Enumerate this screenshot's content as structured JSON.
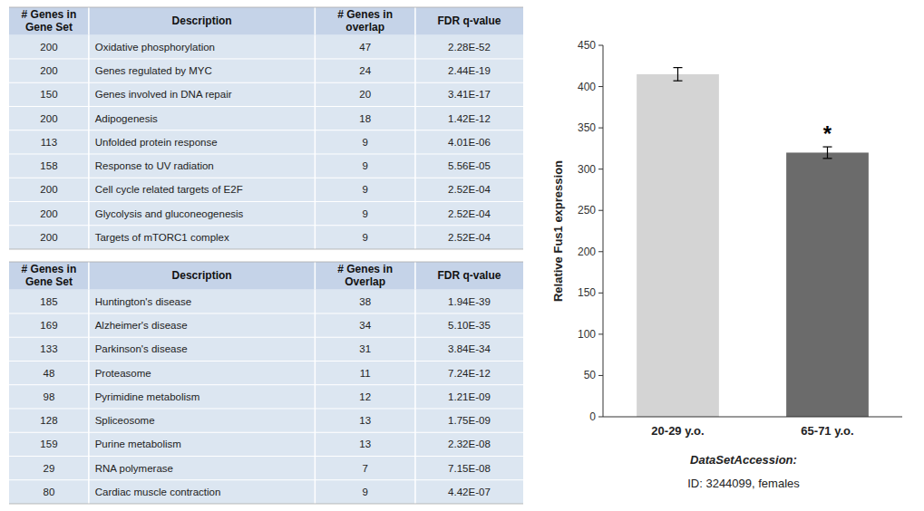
{
  "chart_data": [
    {
      "type": "table",
      "headers": [
        "# Genes in\nGene Set",
        "Description",
        "# Genes in\noverlap",
        "FDR q-value"
      ],
      "rows": [
        [
          "200",
          "Oxidative phosphorylation",
          "47",
          "2.28E-52"
        ],
        [
          "200",
          "Genes regulated by MYC",
          "24",
          "2.44E-19"
        ],
        [
          "150",
          "Genes involved in DNA repair",
          "20",
          "3.41E-17"
        ],
        [
          "200",
          "Adipogenesis",
          "18",
          "1.42E-12"
        ],
        [
          "113",
          "Unfolded protein response",
          "9",
          "4.01E-06"
        ],
        [
          "158",
          "Response to UV radiation",
          "9",
          "5.56E-05"
        ],
        [
          "200",
          "Cell cycle related targets of E2F",
          "9",
          "2.52E-04"
        ],
        [
          "200",
          "Glycolysis and gluconeogenesis",
          "9",
          "2.52E-04"
        ],
        [
          "200",
          "Targets of mTORC1 complex",
          "9",
          "2.52E-04"
        ]
      ],
      "colors": [
        "#c5d3e8",
        "#dce6f1"
      ]
    },
    {
      "type": "table",
      "headers": [
        "# Genes in\nGene Set",
        "Description",
        "# Genes in\nOverlap",
        "FDR q-value"
      ],
      "rows": [
        [
          "185",
          "Huntington's disease",
          "38",
          "1.94E-39"
        ],
        [
          "169",
          "Alzheimer's disease",
          "34",
          "5.10E-35"
        ],
        [
          "133",
          "Parkinson's disease",
          "31",
          "3.84E-34"
        ],
        [
          "48",
          "Proteasome",
          "11",
          "7.24E-12"
        ],
        [
          "98",
          "Pyrimidine metabolism",
          "12",
          "1.21E-09"
        ],
        [
          "128",
          "Spliceosome",
          "13",
          "1.75E-09"
        ],
        [
          "159",
          "Purine metabolism",
          "13",
          "2.32E-08"
        ],
        [
          "29",
          "RNA polymerase",
          "7",
          "7.15E-08"
        ],
        [
          "80",
          "Cardiac muscle contraction",
          "9",
          "4.42E-07"
        ]
      ],
      "colors": [
        "#c5d3e8",
        "#dce6f1"
      ]
    },
    {
      "type": "bar",
      "categories": [
        "20-29 y.o.",
        "65-71 y.o."
      ],
      "values": [
        415,
        320
      ],
      "errors": [
        8,
        7
      ],
      "colors": [
        "#d4d4d4",
        "#6b6b6b"
      ],
      "ylabel": "Relative Fus1 expression",
      "ylim": [
        0,
        450
      ],
      "yticks": [
        0,
        50,
        100,
        150,
        200,
        250,
        300,
        350,
        400,
        450
      ],
      "grid": false,
      "annotations": [
        {
          "text": "*",
          "category": "65-71 y.o."
        }
      ],
      "footnotes": [
        "DataSetAccession:",
        "ID: 3244099, females"
      ]
    }
  ]
}
